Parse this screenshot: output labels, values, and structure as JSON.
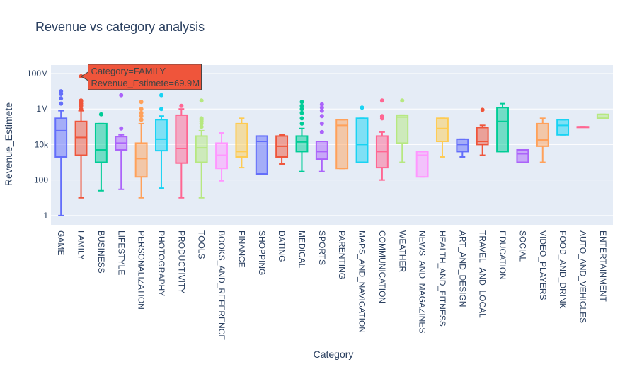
{
  "chart_data": {
    "type": "box",
    "title": "Revenue vs category analysis",
    "xlabel": "Category",
    "ylabel": "Revenue_Estimete",
    "yscale": "log",
    "ylim": [
      0.3,
      300000000
    ],
    "yticks": [
      {
        "value": 1,
        "label": "1"
      },
      {
        "value": 100,
        "label": "100"
      },
      {
        "value": 10000,
        "label": "10k"
      },
      {
        "value": 1000000,
        "label": "1M"
      },
      {
        "value": 100000000,
        "label": "100M"
      }
    ],
    "grid": true,
    "legend": "none",
    "series": [
      {
        "category": "GAME",
        "color": "#636efa",
        "min": 1,
        "q1": 2000,
        "median": 60000,
        "q3": 300000,
        "max": 800000,
        "outliers": [
          2000000,
          4000000,
          7000000,
          10000000
        ]
      },
      {
        "category": "FAMILY",
        "color": "#EF553B",
        "min": 10,
        "q1": 2500,
        "median": 25000,
        "q3": 200000,
        "max": 800000,
        "outliers": [
          1000000,
          1500000,
          2000000,
          2600000,
          3000000,
          69900000
        ]
      },
      {
        "category": "BUSINESS",
        "color": "#00cc96",
        "min": 25,
        "q1": 1000,
        "median": 5000,
        "q3": 150000,
        "max": 150000,
        "outliers": [
          500000
        ]
      },
      {
        "category": "LIFESTYLE",
        "color": "#ab63fa",
        "min": 30,
        "q1": 5000,
        "median": 12000,
        "q3": 28000,
        "max": 35000,
        "outliers": [
          80000,
          6000000
        ]
      },
      {
        "category": "PERSONALIZATION",
        "color": "#FFA15A",
        "min": 10,
        "q1": 150,
        "median": 1600,
        "q3": 12000,
        "max": 150000,
        "outliers": [
          250000,
          400000,
          600000,
          1000000,
          2500000
        ]
      },
      {
        "category": "PHOTOGRAPHY",
        "color": "#19d3f3",
        "min": 35,
        "q1": 4500,
        "median": 20000,
        "q3": 250000,
        "max": 400000,
        "outliers": [
          1000000,
          6000000
        ]
      },
      {
        "category": "PRODUCTIVITY",
        "color": "#FF6692",
        "min": 10,
        "q1": 900,
        "median": 6000,
        "q3": 450000,
        "max": 1000000,
        "outliers": [
          1500000
        ]
      },
      {
        "category": "TOOLS",
        "color": "#B6E880",
        "min": 10,
        "q1": 1000,
        "median": 6500,
        "q3": 30000,
        "max": 60000,
        "outliers": [
          100000,
          150000,
          200000,
          250000,
          300000,
          3000000
        ]
      },
      {
        "category": "BOOKS_AND_REFERENCE",
        "color": "#FF97FF",
        "min": 90,
        "q1": 450,
        "median": 2500,
        "q3": 12000,
        "max": 45000,
        "outliers": []
      },
      {
        "category": "FINANCE",
        "color": "#FECB52",
        "min": 500,
        "q1": 2000,
        "median": 4000,
        "q3": 150000,
        "max": 300000,
        "outliers": []
      },
      {
        "category": "SHOPPING",
        "color": "#636efa",
        "min": 220,
        "q1": 220,
        "median": 15000,
        "q3": 30000,
        "max": 30000,
        "outliers": []
      },
      {
        "category": "DATING",
        "color": "#EF553B",
        "min": 800,
        "q1": 2000,
        "median": 8000,
        "q3": 30000,
        "max": 35000,
        "outliers": []
      },
      {
        "category": "MEDICAL",
        "color": "#00cc96",
        "min": 300,
        "q1": 4000,
        "median": 14000,
        "q3": 30000,
        "max": 80000,
        "outliers": [
          150000,
          300000,
          600000,
          1000000,
          1500000,
          2500000
        ]
      },
      {
        "category": "SPORTS",
        "color": "#ab63fa",
        "min": 300,
        "q1": 1500,
        "median": 4000,
        "q3": 15000,
        "max": 15000,
        "outliers": [
          50000,
          150000,
          400000,
          800000,
          1200000,
          1800000
        ]
      },
      {
        "category": "PARENTING",
        "color": "#FFA15A",
        "min": 450,
        "q1": 450,
        "median": 120000,
        "q3": 250000,
        "max": 250000,
        "outliers": []
      },
      {
        "category": "MAPS_AND_NAVIGATION",
        "color": "#19d3f3",
        "min": 1000,
        "q1": 1000,
        "median": 10000,
        "q3": 300000,
        "max": 300000,
        "outliers": [
          1200000
        ]
      },
      {
        "category": "COMMUNICATION",
        "color": "#FF6692",
        "min": 100,
        "q1": 500,
        "median": 4000,
        "q3": 30000,
        "max": 50000,
        "outliers": [
          300000,
          400000,
          3000000
        ]
      },
      {
        "category": "WEATHER",
        "color": "#B6E880",
        "min": 1000,
        "q1": 12000,
        "median": 350000,
        "q3": 450000,
        "max": 450000,
        "outliers": [
          3000000
        ]
      },
      {
        "category": "NEWS_AND_MAGAZINES",
        "color": "#FF97FF",
        "min": 150,
        "q1": 150,
        "median": 2500,
        "q3": 4000,
        "max": 4000,
        "outliers": []
      },
      {
        "category": "HEALTH_AND_FITNESS",
        "color": "#FECB52",
        "min": 2000,
        "q1": 15000,
        "median": 80000,
        "q3": 300000,
        "max": 300000,
        "outliers": []
      },
      {
        "category": "ART_AND_DESIGN",
        "color": "#636efa",
        "min": 2000,
        "q1": 4000,
        "median": 10000,
        "q3": 20000,
        "max": 20000,
        "outliers": []
      },
      {
        "category": "TRAVEL_AND_LOCAL",
        "color": "#EF553B",
        "min": 2500,
        "q1": 10000,
        "median": 15000,
        "q3": 90000,
        "max": 120000,
        "outliers": [
          900000
        ]
      },
      {
        "category": "EDUCATION",
        "color": "#00cc96",
        "min": 4000,
        "q1": 4000,
        "median": 200000,
        "q3": 1200000,
        "max": 2000000,
        "outliers": []
      },
      {
        "category": "SOCIAL",
        "color": "#ab63fa",
        "min": 1000,
        "q1": 1000,
        "median": 3000,
        "q3": 5000,
        "max": 5000,
        "outliers": []
      },
      {
        "category": "VIDEO_PLAYERS",
        "color": "#FFA15A",
        "min": 1000,
        "q1": 8000,
        "median": 18000,
        "q3": 150000,
        "max": 300000,
        "outliers": []
      },
      {
        "category": "FOOD_AND_DRINK",
        "color": "#19d3f3",
        "min": 35000,
        "q1": 35000,
        "median": 120000,
        "q3": 250000,
        "max": 250000,
        "outliers": []
      },
      {
        "category": "AUTO_AND_VEHICLES",
        "color": "#FF6692",
        "min": 100000,
        "q1": 100000,
        "median": 100000,
        "q3": 100000,
        "max": 100000,
        "outliers": []
      },
      {
        "category": "ENTERTAINMENT",
        "color": "#B6E880",
        "min": 300000,
        "q1": 300000,
        "median": 300000,
        "q3": 500000,
        "max": 500000,
        "outliers": []
      }
    ],
    "hover_label": {
      "category_line": "Category=FAMILY",
      "value_line": "Revenue_Estimete=69.9M",
      "color": "#EF553B"
    }
  }
}
